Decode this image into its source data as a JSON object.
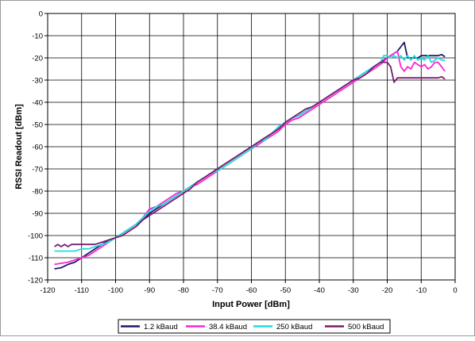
{
  "chart_data": {
    "type": "line",
    "xlabel": "Input Power [dBm]",
    "ylabel": "RSSI Readout [dBm]",
    "xlim": [
      -120,
      0
    ],
    "ylim": [
      -120,
      0
    ],
    "grid": true,
    "legend_position": "bottom",
    "x_ticks": [
      "-120",
      "-110",
      "-100",
      "-90",
      "-80",
      "-70",
      "-60",
      "-50",
      "-40",
      "-30",
      "-20",
      "-10",
      "0"
    ],
    "y_ticks": [
      "0",
      "-10",
      "-20",
      "-30",
      "-40",
      "-50",
      "-60",
      "-70",
      "-80",
      "-90",
      "-100",
      "-110",
      "-120"
    ],
    "series": [
      {
        "name": "1.2 kBaud",
        "color": "#1a1a6e",
        "points": [
          [
            -118,
            -115
          ],
          [
            -116,
            -114.5
          ],
          [
            -114,
            -113
          ],
          [
            -112,
            -112
          ],
          [
            -110,
            -110
          ],
          [
            -108,
            -108
          ],
          [
            -106,
            -106
          ],
          [
            -104,
            -104
          ],
          [
            -102,
            -102
          ],
          [
            -100,
            -101
          ],
          [
            -98,
            -99
          ],
          [
            -96,
            -97
          ],
          [
            -94,
            -95
          ],
          [
            -92,
            -93
          ],
          [
            -90,
            -90
          ],
          [
            -88,
            -88
          ],
          [
            -86,
            -86
          ],
          [
            -84,
            -84
          ],
          [
            -82,
            -82
          ],
          [
            -80,
            -80
          ],
          [
            -78,
            -78
          ],
          [
            -76,
            -76
          ],
          [
            -74,
            -74
          ],
          [
            -72,
            -72
          ],
          [
            -70,
            -70
          ],
          [
            -68,
            -68
          ],
          [
            -66,
            -66
          ],
          [
            -64,
            -64
          ],
          [
            -62,
            -62
          ],
          [
            -60,
            -60
          ],
          [
            -58,
            -58
          ],
          [
            -56,
            -56
          ],
          [
            -54,
            -54
          ],
          [
            -52,
            -52
          ],
          [
            -50,
            -49
          ],
          [
            -48,
            -47
          ],
          [
            -46,
            -46
          ],
          [
            -44,
            -44
          ],
          [
            -42,
            -42
          ],
          [
            -40,
            -40
          ],
          [
            -38,
            -38
          ],
          [
            -36,
            -36
          ],
          [
            -34,
            -34
          ],
          [
            -32,
            -32
          ],
          [
            -30,
            -30
          ],
          [
            -28,
            -28
          ],
          [
            -26,
            -26
          ],
          [
            -24,
            -24
          ],
          [
            -22,
            -22
          ],
          [
            -20,
            -20
          ],
          [
            -19,
            -19
          ],
          [
            -18,
            -18
          ],
          [
            -17,
            -17
          ],
          [
            -16,
            -15
          ],
          [
            -15,
            -13
          ],
          [
            -14,
            -20
          ],
          [
            -13,
            -20
          ],
          [
            -12,
            -20
          ],
          [
            -11,
            -20
          ],
          [
            -10,
            -19
          ],
          [
            -9,
            -19
          ],
          [
            -8,
            -19
          ],
          [
            -7,
            -19
          ],
          [
            -6,
            -19
          ],
          [
            -5,
            -19
          ],
          [
            -4,
            -18.5
          ],
          [
            -3,
            -19.5
          ]
        ]
      },
      {
        "name": "38.4 kBaud",
        "color": "#ff22d8",
        "points": [
          [
            -118,
            -113
          ],
          [
            -116,
            -112.5
          ],
          [
            -114,
            -112
          ],
          [
            -112,
            -111
          ],
          [
            -110,
            -110
          ],
          [
            -108,
            -109
          ],
          [
            -106,
            -107
          ],
          [
            -104,
            -105
          ],
          [
            -102,
            -103
          ],
          [
            -100,
            -101
          ],
          [
            -98,
            -99
          ],
          [
            -96,
            -97
          ],
          [
            -94,
            -95
          ],
          [
            -92,
            -92
          ],
          [
            -90,
            -88
          ],
          [
            -88,
            -87
          ],
          [
            -86,
            -85
          ],
          [
            -84,
            -83
          ],
          [
            -82,
            -81
          ],
          [
            -80,
            -80
          ],
          [
            -78,
            -78
          ],
          [
            -76,
            -77
          ],
          [
            -74,
            -75
          ],
          [
            -72,
            -73
          ],
          [
            -70,
            -71
          ],
          [
            -68,
            -69
          ],
          [
            -66,
            -67
          ],
          [
            -64,
            -65
          ],
          [
            -62,
            -63
          ],
          [
            -60,
            -61
          ],
          [
            -58,
            -59
          ],
          [
            -56,
            -57
          ],
          [
            -54,
            -55
          ],
          [
            -52,
            -53
          ],
          [
            -50,
            -50
          ],
          [
            -48,
            -48
          ],
          [
            -46,
            -47
          ],
          [
            -44,
            -45
          ],
          [
            -42,
            -43
          ],
          [
            -40,
            -41
          ],
          [
            -38,
            -39
          ],
          [
            -36,
            -37
          ],
          [
            -34,
            -35
          ],
          [
            -32,
            -33
          ],
          [
            -30,
            -31
          ],
          [
            -28,
            -29
          ],
          [
            -26,
            -27
          ],
          [
            -24,
            -25
          ],
          [
            -22,
            -23
          ],
          [
            -20,
            -20
          ],
          [
            -19,
            -19
          ],
          [
            -18,
            -18
          ],
          [
            -17,
            -17
          ],
          [
            -16,
            -24
          ],
          [
            -15,
            -26
          ],
          [
            -14,
            -24
          ],
          [
            -13,
            -25
          ],
          [
            -12,
            -22
          ],
          [
            -11,
            -23
          ],
          [
            -10,
            -24
          ],
          [
            -9,
            -23
          ],
          [
            -8,
            -25
          ],
          [
            -7,
            -24
          ],
          [
            -6,
            -22
          ],
          [
            -5,
            -22
          ],
          [
            -4,
            -24
          ],
          [
            -3,
            -26
          ]
        ]
      },
      {
        "name": "250 kBaud",
        "color": "#22dcdc",
        "points": [
          [
            -118,
            -107
          ],
          [
            -116,
            -107
          ],
          [
            -114,
            -107
          ],
          [
            -112,
            -107
          ],
          [
            -110,
            -106
          ],
          [
            -108,
            -106
          ],
          [
            -106,
            -105
          ],
          [
            -104,
            -104
          ],
          [
            -102,
            -103
          ],
          [
            -100,
            -101
          ],
          [
            -98,
            -99
          ],
          [
            -96,
            -97
          ],
          [
            -94,
            -95
          ],
          [
            -92,
            -92
          ],
          [
            -90,
            -89
          ],
          [
            -88,
            -87
          ],
          [
            -86,
            -86
          ],
          [
            -84,
            -84
          ],
          [
            -82,
            -82
          ],
          [
            -80,
            -80
          ],
          [
            -78,
            -78
          ],
          [
            -76,
            -76
          ],
          [
            -74,
            -74
          ],
          [
            -72,
            -72
          ],
          [
            -70,
            -71
          ],
          [
            -68,
            -69
          ],
          [
            -66,
            -67
          ],
          [
            -64,
            -65
          ],
          [
            -62,
            -63
          ],
          [
            -60,
            -61
          ],
          [
            -58,
            -58
          ],
          [
            -56,
            -57
          ],
          [
            -54,
            -54
          ],
          [
            -52,
            -51
          ],
          [
            -50,
            -49
          ],
          [
            -48,
            -47
          ],
          [
            -46,
            -46
          ],
          [
            -44,
            -44
          ],
          [
            -42,
            -42
          ],
          [
            -40,
            -40
          ],
          [
            -38,
            -38
          ],
          [
            -36,
            -36
          ],
          [
            -34,
            -34
          ],
          [
            -32,
            -32
          ],
          [
            -30,
            -30
          ],
          [
            -28,
            -28
          ],
          [
            -26,
            -26
          ],
          [
            -24,
            -24
          ],
          [
            -22,
            -22
          ],
          [
            -21,
            -19
          ],
          [
            -20,
            -19
          ],
          [
            -19,
            -20
          ],
          [
            -18,
            -19
          ],
          [
            -17,
            -20
          ],
          [
            -16,
            -19
          ],
          [
            -15,
            -21
          ],
          [
            -14,
            -19
          ],
          [
            -13,
            -21
          ],
          [
            -12,
            -19
          ],
          [
            -11,
            -21
          ],
          [
            -10,
            -20
          ],
          [
            -9,
            -21
          ],
          [
            -8,
            -19
          ],
          [
            -7,
            -22
          ],
          [
            -6,
            -21
          ],
          [
            -5,
            -20
          ],
          [
            -4,
            -21
          ],
          [
            -3,
            -21
          ]
        ]
      },
      {
        "name": "500 kBaud",
        "color": "#7a1c6e",
        "points": [
          [
            -118,
            -105
          ],
          [
            -117,
            -104
          ],
          [
            -116,
            -105
          ],
          [
            -115,
            -104
          ],
          [
            -114,
            -105
          ],
          [
            -113,
            -104
          ],
          [
            -112,
            -104
          ],
          [
            -110,
            -104
          ],
          [
            -108,
            -104
          ],
          [
            -106,
            -104
          ],
          [
            -104,
            -103
          ],
          [
            -102,
            -102
          ],
          [
            -100,
            -101
          ],
          [
            -98,
            -100
          ],
          [
            -96,
            -98
          ],
          [
            -94,
            -96
          ],
          [
            -92,
            -93
          ],
          [
            -90,
            -91
          ],
          [
            -88,
            -89
          ],
          [
            -86,
            -87
          ],
          [
            -84,
            -85
          ],
          [
            -82,
            -83
          ],
          [
            -80,
            -81
          ],
          [
            -78,
            -79
          ],
          [
            -76,
            -76
          ],
          [
            -74,
            -74
          ],
          [
            -72,
            -72
          ],
          [
            -70,
            -70
          ],
          [
            -68,
            -68
          ],
          [
            -66,
            -66
          ],
          [
            -64,
            -64
          ],
          [
            -62,
            -62
          ],
          [
            -60,
            -60
          ],
          [
            -58,
            -58
          ],
          [
            -56,
            -56
          ],
          [
            -54,
            -54
          ],
          [
            -52,
            -52
          ],
          [
            -50,
            -49
          ],
          [
            -48,
            -47
          ],
          [
            -46,
            -45
          ],
          [
            -44,
            -43
          ],
          [
            -42,
            -42
          ],
          [
            -40,
            -40
          ],
          [
            -38,
            -38
          ],
          [
            -36,
            -36
          ],
          [
            -34,
            -34
          ],
          [
            -32,
            -32
          ],
          [
            -30,
            -30
          ],
          [
            -28,
            -29
          ],
          [
            -26,
            -27
          ],
          [
            -24,
            -24
          ],
          [
            -22,
            -22
          ],
          [
            -20,
            -22
          ],
          [
            -19,
            -24
          ],
          [
            -18,
            -31
          ],
          [
            -17,
            -29
          ],
          [
            -16,
            -29
          ],
          [
            -15,
            -29
          ],
          [
            -14,
            -29
          ],
          [
            -13,
            -29
          ],
          [
            -12,
            -29
          ],
          [
            -11,
            -29
          ],
          [
            -10,
            -29
          ],
          [
            -9,
            -29
          ],
          [
            -8,
            -29
          ],
          [
            -7,
            -29
          ],
          [
            -6,
            -29
          ],
          [
            -5,
            -29
          ],
          [
            -4,
            -28.5
          ],
          [
            -3,
            -29.5
          ]
        ]
      }
    ]
  }
}
